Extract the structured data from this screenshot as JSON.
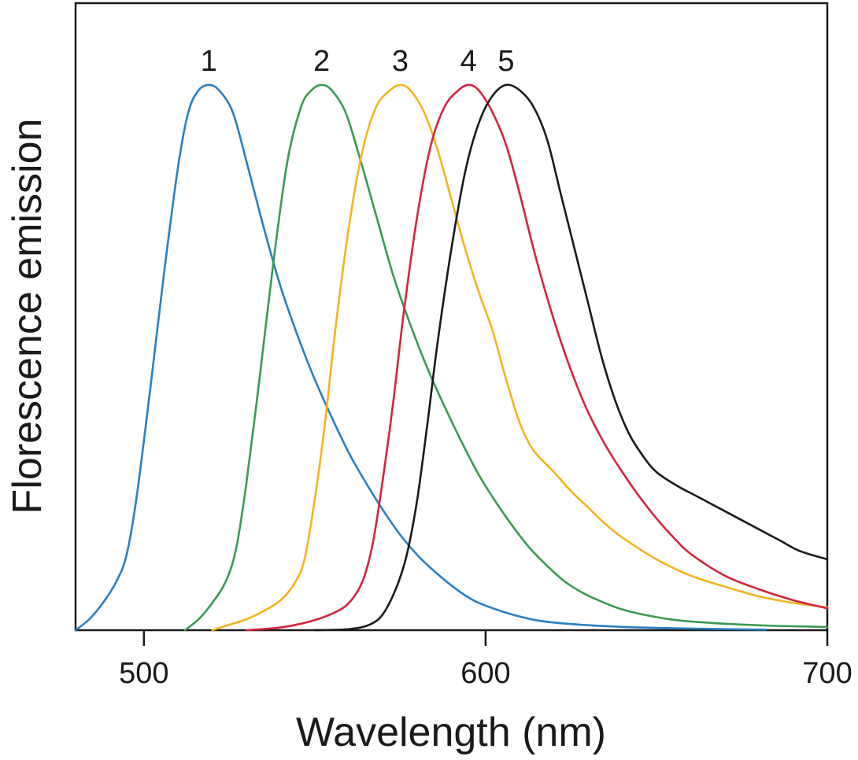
{
  "chart_data": {
    "type": "line",
    "title": "",
    "xlabel": "Wavelength (nm)",
    "ylabel": "Florescence emission",
    "xlim": [
      480,
      700
    ],
    "ylim": [
      0,
      1.15
    ],
    "x_ticks": [
      500,
      600,
      700
    ],
    "grid": false,
    "legend": "none",
    "series": [
      {
        "name": "1",
        "color": "#2b7fc1",
        "points": [
          [
            480,
            0
          ],
          [
            484,
            0.02
          ],
          [
            488,
            0.05
          ],
          [
            492,
            0.09
          ],
          [
            495,
            0.14
          ],
          [
            498,
            0.25
          ],
          [
            502,
            0.45
          ],
          [
            506,
            0.66
          ],
          [
            510,
            0.85
          ],
          [
            513,
            0.95
          ],
          [
            516,
            0.99
          ],
          [
            519,
            1.0
          ],
          [
            522,
            0.99
          ],
          [
            526,
            0.95
          ],
          [
            530,
            0.86
          ],
          [
            535,
            0.74
          ],
          [
            540,
            0.63
          ],
          [
            545,
            0.54
          ],
          [
            550,
            0.46
          ],
          [
            555,
            0.39
          ],
          [
            560,
            0.325
          ],
          [
            565,
            0.27
          ],
          [
            570,
            0.22
          ],
          [
            575,
            0.175
          ],
          [
            580,
            0.138
          ],
          [
            585,
            0.108
          ],
          [
            590,
            0.082
          ],
          [
            595,
            0.06
          ],
          [
            600,
            0.045
          ],
          [
            610,
            0.025
          ],
          [
            620,
            0.014
          ],
          [
            640,
            0.006
          ],
          [
            660,
            0.003
          ],
          [
            682,
            0.001
          ]
        ]
      },
      {
        "name": "2",
        "color": "#3a9a52",
        "points": [
          [
            512,
            0
          ],
          [
            516,
            0.02
          ],
          [
            520,
            0.05
          ],
          [
            524,
            0.09
          ],
          [
            527,
            0.15
          ],
          [
            530,
            0.27
          ],
          [
            534,
            0.47
          ],
          [
            538,
            0.68
          ],
          [
            542,
            0.86
          ],
          [
            546,
            0.96
          ],
          [
            549,
            0.99
          ],
          [
            552,
            1.0
          ],
          [
            555,
            0.99
          ],
          [
            559,
            0.95
          ],
          [
            563,
            0.87
          ],
          [
            568,
            0.76
          ],
          [
            573,
            0.65
          ],
          [
            578,
            0.56
          ],
          [
            583,
            0.48
          ],
          [
            588,
            0.41
          ],
          [
            593,
            0.345
          ],
          [
            598,
            0.285
          ],
          [
            603,
            0.235
          ],
          [
            608,
            0.19
          ],
          [
            613,
            0.15
          ],
          [
            618,
            0.118
          ],
          [
            623,
            0.09
          ],
          [
            628,
            0.07
          ],
          [
            633,
            0.055
          ],
          [
            640,
            0.038
          ],
          [
            650,
            0.024
          ],
          [
            660,
            0.016
          ],
          [
            680,
            0.009
          ],
          [
            700,
            0.006
          ]
        ]
      },
      {
        "name": "3",
        "color": "#f2b51e",
        "points": [
          [
            520,
            0
          ],
          [
            525,
            0.01
          ],
          [
            530,
            0.02
          ],
          [
            535,
            0.035
          ],
          [
            540,
            0.055
          ],
          [
            544,
            0.085
          ],
          [
            547,
            0.13
          ],
          [
            550,
            0.24
          ],
          [
            553,
            0.38
          ],
          [
            556,
            0.55
          ],
          [
            560,
            0.74
          ],
          [
            564,
            0.88
          ],
          [
            568,
            0.96
          ],
          [
            572,
            0.99
          ],
          [
            575,
            1.0
          ],
          [
            578,
            0.99
          ],
          [
            582,
            0.95
          ],
          [
            586,
            0.88
          ],
          [
            590,
            0.79
          ],
          [
            594,
            0.7
          ],
          [
            598,
            0.62
          ],
          [
            602,
            0.55
          ],
          [
            606,
            0.46
          ],
          [
            610,
            0.38
          ],
          [
            614,
            0.33
          ],
          [
            620,
            0.29
          ],
          [
            625,
            0.255
          ],
          [
            630,
            0.225
          ],
          [
            635,
            0.195
          ],
          [
            640,
            0.17
          ],
          [
            650,
            0.13
          ],
          [
            660,
            0.1
          ],
          [
            670,
            0.08
          ],
          [
            680,
            0.062
          ],
          [
            690,
            0.05
          ],
          [
            700,
            0.042
          ]
        ]
      },
      {
        "name": "4",
        "color": "#d1263e",
        "points": [
          [
            530,
            0
          ],
          [
            540,
            0.005
          ],
          [
            548,
            0.015
          ],
          [
            555,
            0.03
          ],
          [
            560,
            0.05
          ],
          [
            564,
            0.09
          ],
          [
            567,
            0.16
          ],
          [
            570,
            0.28
          ],
          [
            573,
            0.42
          ],
          [
            576,
            0.58
          ],
          [
            580,
            0.76
          ],
          [
            584,
            0.89
          ],
          [
            588,
            0.96
          ],
          [
            592,
            0.99
          ],
          [
            595,
            1.0
          ],
          [
            598,
            0.99
          ],
          [
            602,
            0.95
          ],
          [
            606,
            0.89
          ],
          [
            610,
            0.8
          ],
          [
            614,
            0.7
          ],
          [
            618,
            0.61
          ],
          [
            622,
            0.53
          ],
          [
            626,
            0.46
          ],
          [
            630,
            0.4
          ],
          [
            635,
            0.34
          ],
          [
            640,
            0.29
          ],
          [
            645,
            0.245
          ],
          [
            650,
            0.205
          ],
          [
            655,
            0.17
          ],
          [
            660,
            0.14
          ],
          [
            670,
            0.1
          ],
          [
            680,
            0.075
          ],
          [
            690,
            0.055
          ],
          [
            700,
            0.04
          ]
        ]
      },
      {
        "name": "5",
        "color": "#1a1a1a",
        "points": [
          [
            550,
            0
          ],
          [
            560,
            0.002
          ],
          [
            566,
            0.01
          ],
          [
            570,
            0.03
          ],
          [
            574,
            0.08
          ],
          [
            577,
            0.14
          ],
          [
            580,
            0.24
          ],
          [
            583,
            0.38
          ],
          [
            586,
            0.53
          ],
          [
            590,
            0.7
          ],
          [
            594,
            0.84
          ],
          [
            598,
            0.93
          ],
          [
            602,
            0.98
          ],
          [
            606,
            1.0
          ],
          [
            610,
            0.99
          ],
          [
            614,
            0.96
          ],
          [
            618,
            0.9
          ],
          [
            622,
            0.8
          ],
          [
            626,
            0.7
          ],
          [
            630,
            0.6
          ],
          [
            634,
            0.5
          ],
          [
            638,
            0.42
          ],
          [
            642,
            0.36
          ],
          [
            646,
            0.32
          ],
          [
            650,
            0.29
          ],
          [
            656,
            0.265
          ],
          [
            662,
            0.245
          ],
          [
            668,
            0.225
          ],
          [
            674,
            0.205
          ],
          [
            680,
            0.185
          ],
          [
            686,
            0.165
          ],
          [
            692,
            0.145
          ],
          [
            700,
            0.13
          ]
        ]
      }
    ]
  }
}
